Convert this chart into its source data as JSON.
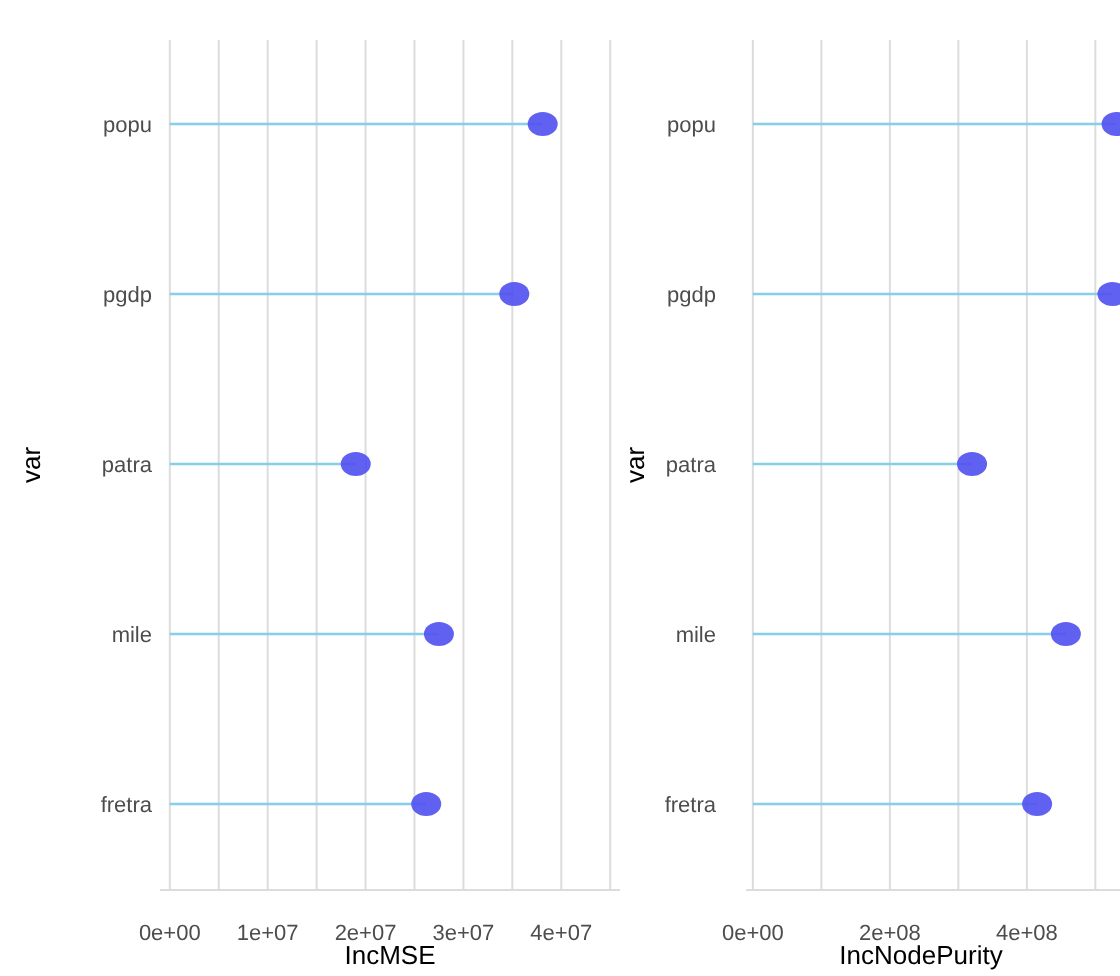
{
  "chart_data": [
    {
      "type": "lollipop",
      "orientation": "horizontal",
      "categories": [
        "popu",
        "pgdp",
        "patra",
        "mile",
        "fretra"
      ],
      "values": [
        38100000,
        35200000,
        19000000,
        27500000,
        26200000
      ],
      "color": "#5050f0",
      "xlabel": "IncMSE",
      "ylabel": "var",
      "xlim": [
        -1000000,
        46000000
      ],
      "xticks": [
        {
          "value": 0,
          "label": "0e+00"
        },
        {
          "value": 5000000,
          "label": null
        },
        {
          "value": 10000000,
          "label": "1e+07"
        },
        {
          "value": 15000000,
          "label": null
        },
        {
          "value": 20000000,
          "label": "2e+07"
        },
        {
          "value": 25000000,
          "label": null
        },
        {
          "value": 30000000,
          "label": "3e+07"
        },
        {
          "value": 35000000,
          "label": null
        },
        {
          "value": 40000000,
          "label": "4e+07"
        },
        {
          "value": 45000000,
          "label": null
        }
      ],
      "grid": "x",
      "marker": "circle"
    },
    {
      "type": "lollipop",
      "orientation": "horizontal",
      "categories": [
        "popu",
        "pgdp",
        "patra",
        "mile",
        "fretra"
      ],
      "values": [
        531000000,
        525000000,
        320000000,
        457000000,
        415000000
      ],
      "color": "#5050f0",
      "xlabel": "IncNodePurity",
      "ylabel": "var",
      "xlim": [
        -10000000,
        536000000
      ],
      "xticks": [
        {
          "value": 0,
          "label": "0e+00"
        },
        {
          "value": 100000000,
          "label": null
        },
        {
          "value": 200000000,
          "label": "2e+08"
        },
        {
          "value": 300000000,
          "label": null
        },
        {
          "value": 400000000,
          "label": "4e+08"
        },
        {
          "value": 500000000,
          "label": null
        }
      ],
      "grid": "x",
      "marker": "circle"
    }
  ]
}
